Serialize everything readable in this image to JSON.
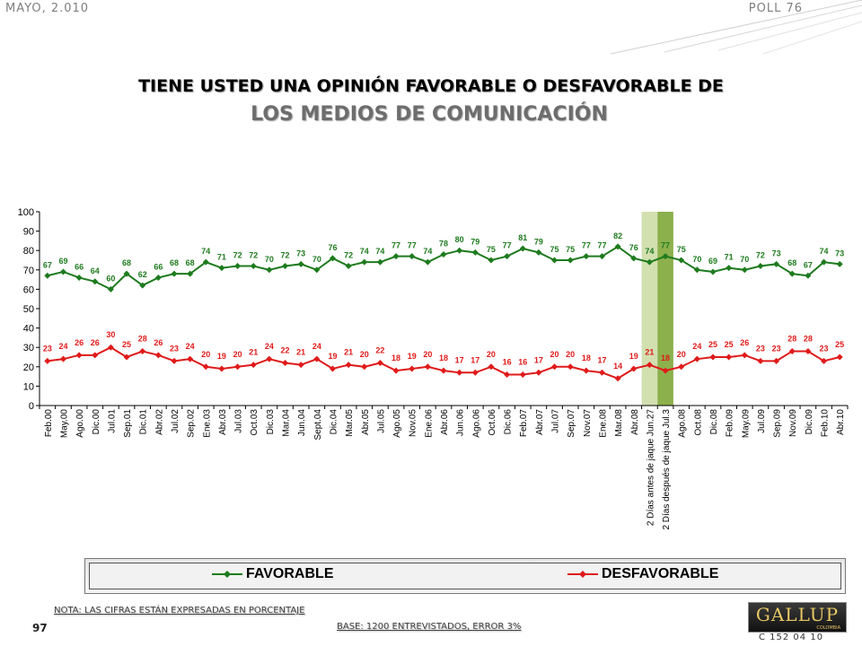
{
  "header": {
    "left": "MAYO, 2.010",
    "right": "POLL 76"
  },
  "title": {
    "line1": "TIENE USTED UNA OPINIÓN FAVORABLE O DESFAVORABLE DE",
    "line2": "LOS MEDIOS DE COMUNICACIÓN"
  },
  "footer": {
    "note": "NOTA: LAS CIFRAS ESTÁN EXPRESADAS EN PORCENTAJE",
    "page": "97",
    "base": "BASE: 1200 ENTREVISTADOS, ERROR 3%",
    "logo": "GALLUP",
    "logo_sub": "COLOMBIA",
    "code": "C 152 04 10"
  },
  "chart_data": {
    "type": "line",
    "categories": [
      "Feb.00",
      "May.00",
      "Ago.00",
      "Dic.00",
      "Jul.01",
      "Sep.01",
      "Dic.01",
      "Abr.02",
      "Jul.02",
      "Sep.02",
      "Ene.03",
      "Abr.03",
      "Jul.03",
      "Oct.03",
      "Dic.03",
      "Mar.04",
      "Jun.04",
      "Sept.04",
      "Dic.04",
      "Mar.05",
      "Abr.05",
      "Jul.05",
      "Ago.05",
      "Nov.05",
      "Ene.06",
      "Abr.06",
      "Jun.06",
      "Ago.06",
      "Oct.06",
      "Dic.06",
      "Feb.07",
      "Abr.07",
      "Jul.07",
      "Sep.07",
      "Nov.07",
      "Ene.08",
      "Mar.08",
      "Abr.08",
      "2 Días antes de jaque Jun.27",
      "2 Días después de jaque Jul.3",
      "Ago.08",
      "Oct.08",
      "Dic.08",
      "Feb.09",
      "May.09",
      "Jul.09",
      "Sep.09",
      "Nov.09",
      "Dic.09",
      "Feb.10",
      "Abr.10"
    ],
    "series": [
      {
        "name": "FAVORABLE",
        "color": "#1e7b1e",
        "values": [
          67,
          69,
          66,
          64,
          60,
          68,
          62,
          66,
          68,
          68,
          74,
          71,
          72,
          72,
          70,
          72,
          73,
          70,
          76,
          72,
          74,
          74,
          77,
          77,
          74,
          78,
          80,
          79,
          75,
          77,
          81,
          79,
          75,
          75,
          77,
          77,
          82,
          76,
          74,
          77,
          75,
          70,
          69,
          71,
          70,
          72,
          73,
          68,
          67,
          74,
          73
        ]
      },
      {
        "name": "DESFAVORABLE",
        "color": "#e01a1a",
        "values": [
          23,
          24,
          26,
          26,
          30,
          25,
          28,
          26,
          23,
          24,
          20,
          19,
          20,
          21,
          24,
          22,
          21,
          24,
          19,
          21,
          20,
          22,
          18,
          19,
          20,
          18,
          17,
          17,
          20,
          16,
          16,
          17,
          20,
          20,
          18,
          17,
          14,
          19,
          21,
          18,
          20,
          24,
          25,
          25,
          26,
          23,
          23,
          28,
          28,
          23,
          25
        ]
      }
    ],
    "ylim": [
      0,
      100
    ],
    "yticks": [
      0,
      10,
      20,
      30,
      40,
      50,
      60,
      70,
      80,
      90,
      100
    ],
    "highlight_bands": [
      {
        "category": "2 Días antes de jaque Jun.27",
        "color": "#d2e0b0"
      },
      {
        "category": "2 Días después de jaque Jul.3",
        "color": "#8cb04c"
      }
    ],
    "legend_position": "bottom"
  }
}
